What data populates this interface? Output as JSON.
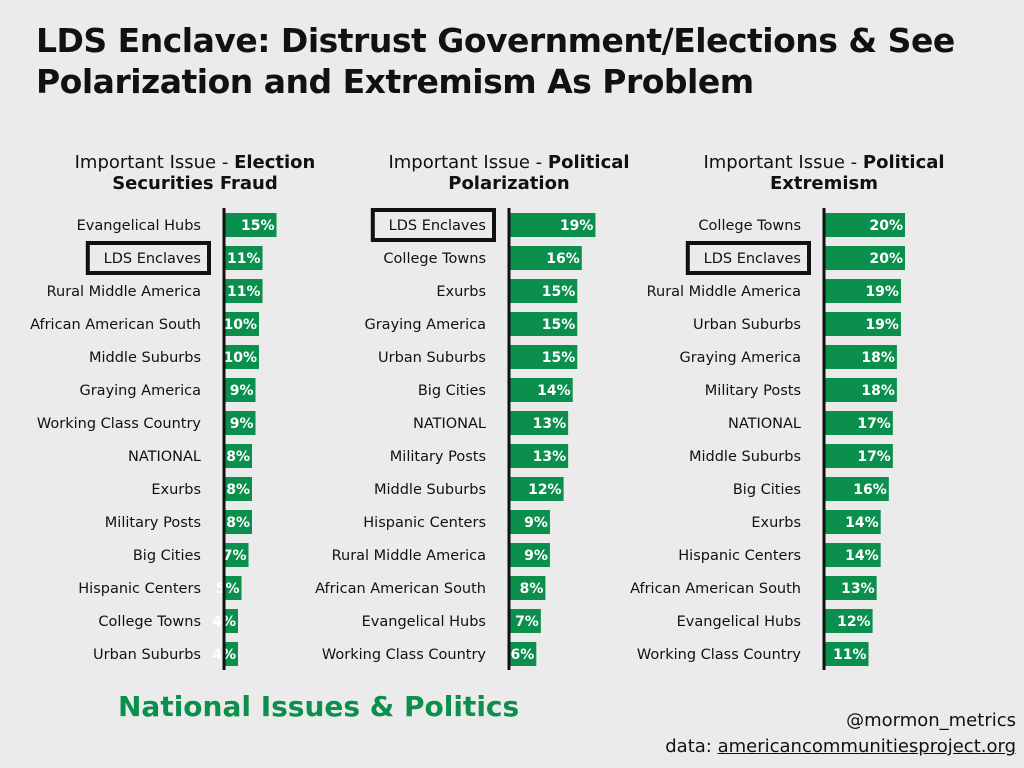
{
  "title": "LDS Enclave: Distrust Government/Elections & See Polarization and Extremism As Problem",
  "footer": {
    "section": "National Issues & Politics",
    "handle": "@mormon_metrics",
    "data_prefix": "data:",
    "data_source": "americancommunitiesproject.org"
  },
  "colors": {
    "bar": "#0a8f4c",
    "background": "#ebebeb",
    "highlight": "#111111"
  },
  "chart_data": [
    {
      "type": "bar",
      "orientation": "horizontal",
      "title_prefix": "Important Issue - ",
      "title_bold": "Election Securities Fraud",
      "highlight": "LDS Enclaves",
      "categories": [
        "Evangelical Hubs",
        "LDS Enclaves",
        "Rural Middle America",
        "African American South",
        "Middle Suburbs",
        "Graying America",
        "Working Class Country",
        "NATIONAL",
        "Exurbs",
        "Military Posts",
        "Big Cities",
        "Hispanic Centers",
        "College Towns",
        "Urban Suburbs"
      ],
      "values": [
        15,
        11,
        11,
        10,
        10,
        9,
        9,
        8,
        8,
        8,
        7,
        5,
        4,
        4
      ],
      "unit": "%"
    },
    {
      "type": "bar",
      "orientation": "horizontal",
      "title_prefix": "Important Issue - ",
      "title_bold": "Political Polarization",
      "highlight": "LDS Enclaves",
      "categories": [
        "LDS Enclaves",
        "College Towns",
        "Exurbs",
        "Graying America",
        "Urban Suburbs",
        "Big Cities",
        "NATIONAL",
        "Military Posts",
        "Middle Suburbs",
        "Hispanic Centers",
        "Rural Middle America",
        "African American South",
        "Evangelical Hubs",
        "Working Class Country"
      ],
      "values": [
        19,
        16,
        15,
        15,
        15,
        14,
        13,
        13,
        12,
        9,
        9,
        8,
        7,
        6
      ],
      "unit": "%"
    },
    {
      "type": "bar",
      "orientation": "horizontal",
      "title_prefix": "Important Issue - ",
      "title_bold": "Political Extremism",
      "highlight": "LDS Enclaves",
      "categories": [
        "College Towns",
        "LDS Enclaves",
        "Rural Middle America",
        "Urban Suburbs",
        "Graying America",
        "Military Posts",
        "NATIONAL",
        "Middle Suburbs",
        "Big Cities",
        "Exurbs",
        "Hispanic Centers",
        "African American South",
        "Evangelical Hubs",
        "Working Class Country"
      ],
      "values": [
        20,
        20,
        19,
        19,
        18,
        18,
        17,
        17,
        16,
        14,
        14,
        13,
        12,
        11
      ],
      "unit": "%"
    }
  ]
}
